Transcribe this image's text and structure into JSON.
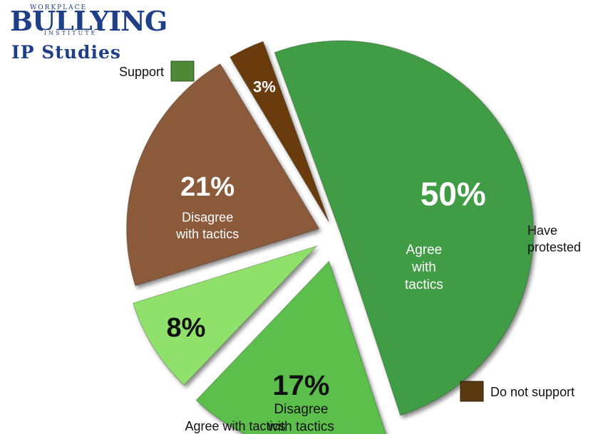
{
  "logo": {
    "line1": "WORKPLACE",
    "line2": "BULLYING",
    "line3": "INSTITUTE",
    "line4": "IP Studies"
  },
  "legend": {
    "support": {
      "label": "Support",
      "color": "#4e8a36"
    },
    "not_support": {
      "label": "Do not support",
      "color": "#5a3a10"
    }
  },
  "chart_data": {
    "type": "pie",
    "slices": [
      {
        "value": 50,
        "pct_label": "50%",
        "text": [
          "Agree",
          "with",
          "tactics"
        ],
        "group": "Support",
        "color": "#3f9c45"
      },
      {
        "value": 17,
        "pct_label": "17%",
        "text": [
          "Disagree",
          "with tactics"
        ],
        "group": "Support",
        "color": "#5cbf4c"
      },
      {
        "value": 8,
        "pct_label": "8%",
        "text": [
          "Have",
          "protested"
        ],
        "group": "Support",
        "color": "#90e06c"
      },
      {
        "value": 21,
        "pct_label": "21%",
        "text": [
          "Disagree",
          "with tactics"
        ],
        "group": "Do not support",
        "color": "#8a5a3a"
      },
      {
        "value": 3,
        "pct_label": "3%",
        "text": [
          "Agree with tactics"
        ],
        "group": "Do not support",
        "color": "#6a3a0c"
      }
    ]
  }
}
